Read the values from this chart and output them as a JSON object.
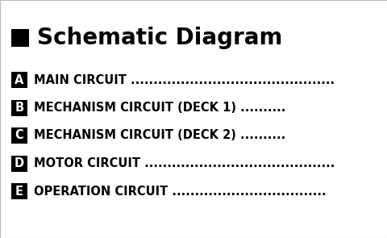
{
  "background_color": "#ffffff",
  "title_square_color": "#000000",
  "title_text": "Schematic Diagram",
  "title_fontsize": 20,
  "entries": [
    {
      "letter": "A",
      "text": "MAIN CIRCUIT ............................................."
    },
    {
      "letter": "B",
      "text": "MECHANISM CIRCUIT (DECK 1) .........."
    },
    {
      "letter": "C",
      "text": "MECHANISM CIRCUIT (DECK 2) .........."
    },
    {
      "letter": "D",
      "text": "MOTOR CIRCUIT .........................................."
    },
    {
      "letter": "E",
      "text": "OPERATION CIRCUIT .................................."
    }
  ],
  "entry_fontsize": 10.5,
  "letter_fontsize": 10.5,
  "letter_box_color": "#000000",
  "letter_text_color": "#ffffff",
  "entry_text_color": "#000000",
  "border_color": "#bbbbbb",
  "border_linewidth": 0.8,
  "fig_width": 4.8,
  "fig_height": 2.95,
  "fig_dpi": 100
}
